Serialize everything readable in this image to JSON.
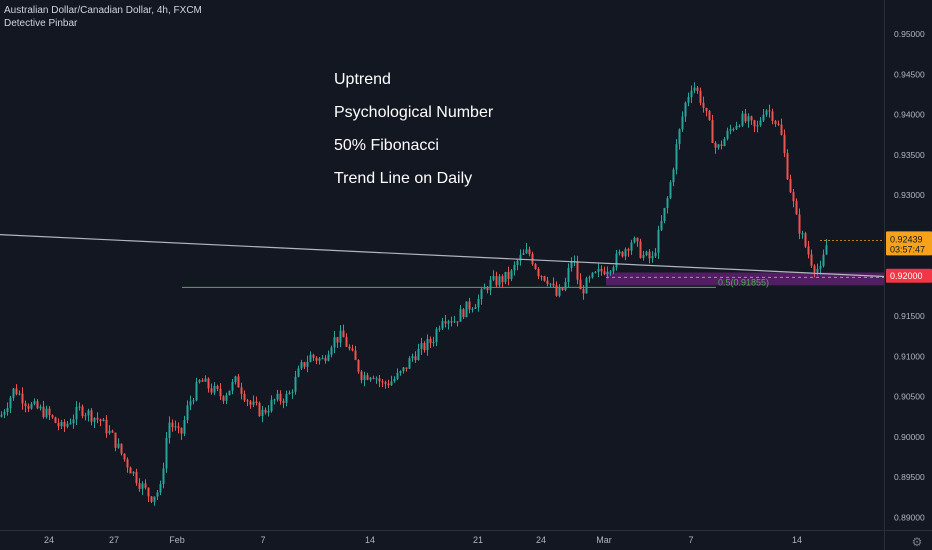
{
  "header": {
    "symbol_line": "Australian Dollar/Canadian Dollar, 4h, FXCM",
    "indicator_line": "Detective Pinbar"
  },
  "annotations": {
    "lines": [
      "Uptrend",
      "Psychological Number",
      "50% Fibonacci",
      "Trend Line on Daily"
    ]
  },
  "price_labels": {
    "last_price": "0.92439",
    "countdown": "03:57:47",
    "level": "0.92000"
  },
  "fib_label": "0.5(0.91855)",
  "colors": {
    "background": "#131722",
    "up": "#26a69a",
    "down": "#ef5350",
    "fib_line": "#4caf50",
    "zone": "#9c27b0",
    "trend_line": "#b2b5be",
    "last_price": "#f7a21b",
    "level_label": "#f23645"
  },
  "chart_data": {
    "type": "candlestick",
    "title": "Australian Dollar/Canadian Dollar, 4h, FXCM",
    "ylim": [
      0.8885,
      0.9518
    ],
    "yticks": [
      "0.95000",
      "0.94500",
      "0.94000",
      "0.93500",
      "0.93000",
      "0.92500",
      "0.92000",
      "0.91500",
      "0.91000",
      "0.90500",
      "0.90000",
      "0.89500",
      "0.89000"
    ],
    "xtick_labels": [
      "24",
      "27",
      "Feb",
      "7",
      "14",
      "21",
      "24",
      "Mar",
      "7",
      "14"
    ],
    "grid": false,
    "horizontal_levels": [
      {
        "label": "0.5(0.91855)",
        "value": 0.91855
      },
      {
        "label": "0.92000",
        "value": 0.92
      }
    ],
    "zone": {
      "from": 0.9188,
      "to": 0.9204
    },
    "trend_line": {
      "from": 0.9251,
      "to": 0.9199
    },
    "close_path": [
      [
        0,
        0.9025
      ],
      [
        14,
        0.906
      ],
      [
        28,
        0.904
      ],
      [
        45,
        0.903
      ],
      [
        62,
        0.901
      ],
      [
        80,
        0.9035
      ],
      [
        100,
        0.902
      ],
      [
        112,
        0.9
      ],
      [
        125,
        0.897
      ],
      [
        138,
        0.8945
      ],
      [
        150,
        0.8925
      ],
      [
        160,
        0.8935
      ],
      [
        168,
        0.902
      ],
      [
        180,
        0.9
      ],
      [
        188,
        0.904
      ],
      [
        200,
        0.907
      ],
      [
        210,
        0.906
      ],
      [
        222,
        0.905
      ],
      [
        236,
        0.907
      ],
      [
        250,
        0.904
      ],
      [
        262,
        0.903
      ],
      [
        274,
        0.9045
      ],
      [
        288,
        0.905
      ],
      [
        300,
        0.9085
      ],
      [
        310,
        0.91
      ],
      [
        322,
        0.9095
      ],
      [
        332,
        0.912
      ],
      [
        342,
        0.9125
      ],
      [
        352,
        0.91
      ],
      [
        362,
        0.9075
      ],
      [
        372,
        0.908
      ],
      [
        382,
        0.9065
      ],
      [
        392,
        0.907
      ],
      [
        402,
        0.908
      ],
      [
        412,
        0.91
      ],
      [
        422,
        0.911
      ],
      [
        432,
        0.912
      ],
      [
        442,
        0.915
      ],
      [
        454,
        0.9145
      ],
      [
        466,
        0.916
      ],
      [
        478,
        0.917
      ],
      [
        488,
        0.919
      ],
      [
        500,
        0.9195
      ],
      [
        510,
        0.92
      ],
      [
        518,
        0.922
      ],
      [
        528,
        0.923
      ],
      [
        538,
        0.9205
      ],
      [
        548,
        0.9195
      ],
      [
        556,
        0.9175
      ],
      [
        564,
        0.9185
      ],
      [
        572,
        0.9225
      ],
      [
        580,
        0.918
      ],
      [
        590,
        0.9195
      ],
      [
        600,
        0.9205
      ],
      [
        612,
        0.9215
      ],
      [
        622,
        0.923
      ],
      [
        632,
        0.9245
      ],
      [
        642,
        0.9225
      ],
      [
        652,
        0.922
      ],
      [
        660,
        0.926
      ],
      [
        668,
        0.93
      ],
      [
        676,
        0.936
      ],
      [
        684,
        0.941
      ],
      [
        692,
        0.944
      ],
      [
        700,
        0.942
      ],
      [
        708,
        0.939
      ],
      [
        716,
        0.9355
      ],
      [
        724,
        0.937
      ],
      [
        732,
        0.9385
      ],
      [
        740,
        0.9395
      ],
      [
        748,
        0.939
      ],
      [
        756,
        0.938
      ],
      [
        764,
        0.941
      ],
      [
        772,
        0.94
      ],
      [
        780,
        0.938
      ],
      [
        788,
        0.932
      ],
      [
        796,
        0.927
      ],
      [
        804,
        0.924
      ],
      [
        812,
        0.9215
      ],
      [
        820,
        0.9205
      ],
      [
        827,
        0.9243
      ]
    ]
  }
}
